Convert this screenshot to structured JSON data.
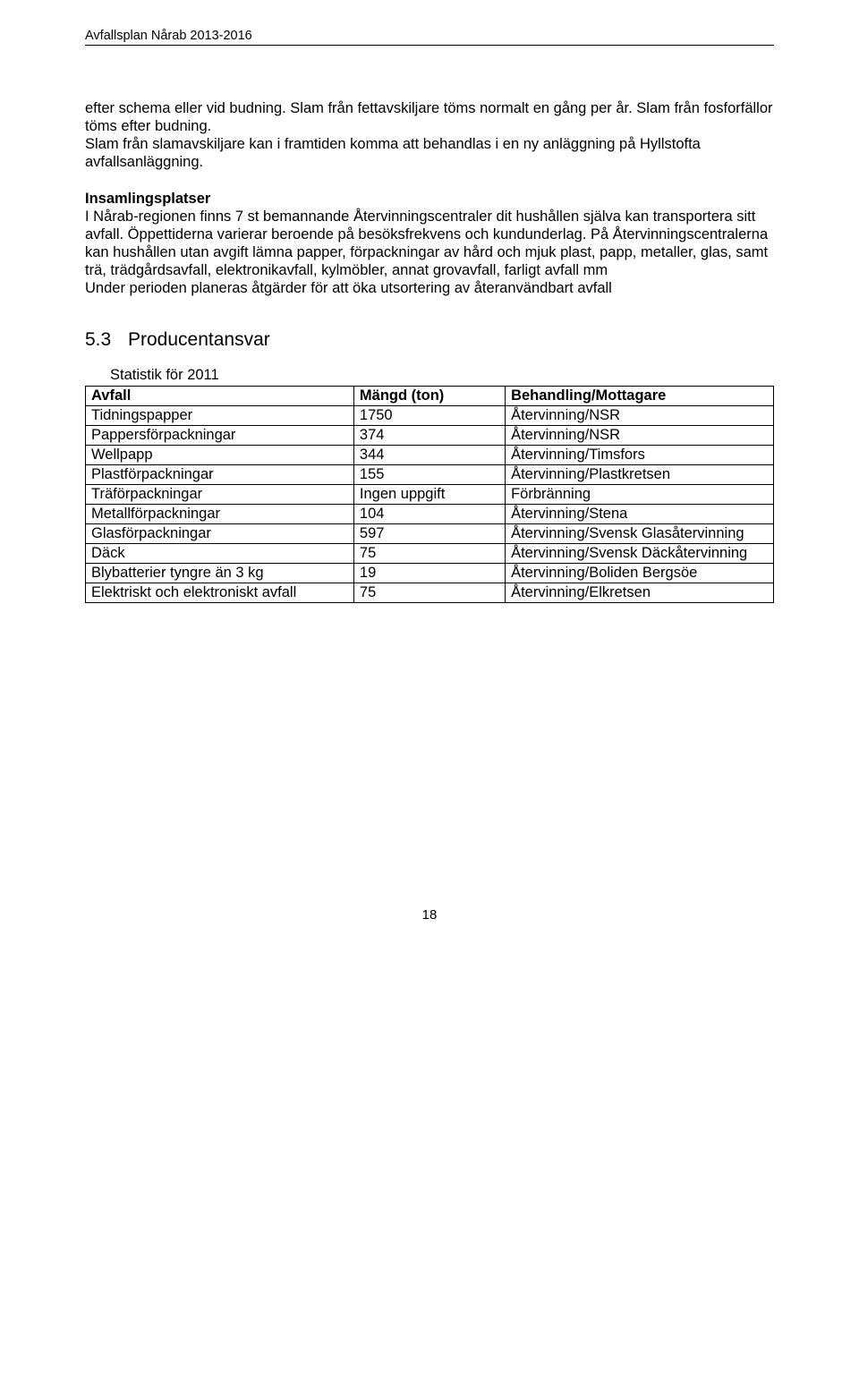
{
  "header": {
    "title": "Avfallsplan Nårab 2013-2016"
  },
  "para1": "efter schema eller vid budning. Slam från fettavskiljare töms normalt en gång per år. Slam från fosforfällor töms efter budning.\nSlam från slamavskiljare kan i framtiden komma att behandlas i en ny anläggning på Hyllstofta avfallsanläggning.",
  "para2_heading": "Insamlingsplatser",
  "para2_body": "I Nårab-regionen finns 7 st bemannande Återvinningscentraler dit hushållen själva kan transportera sitt avfall. Öppettiderna varierar beroende på besöksfrekvens och kundunderlag. På Återvinningscentralerna kan hushållen utan avgift lämna papper, förpackningar av hård och mjuk plast, papp, metaller, glas, samt trä, trädgårdsavfall, elektronikavfall, kylmöbler, annat grovavfall, farligt avfall mm\nUnder perioden planeras åtgärder för att öka utsortering av återanvändbart avfall",
  "section": {
    "num": "5.3",
    "title": "Producentansvar"
  },
  "stat_label": "Statistik för 2011",
  "table": {
    "headers": [
      "Avfall",
      "Mängd (ton)",
      "Behandling/Mottagare"
    ],
    "rows": [
      [
        "Tidningspapper",
        "1750",
        "Återvinning/NSR"
      ],
      [
        "Pappersförpackningar",
        "374",
        "Återvinning/NSR"
      ],
      [
        "Wellpapp",
        "344",
        "Återvinning/Timsfors"
      ],
      [
        "Plastförpackningar",
        "155",
        "Återvinning/Plastkretsen"
      ],
      [
        "Träförpackningar",
        "Ingen uppgift",
        "Förbränning"
      ],
      [
        "Metallförpackningar",
        "104",
        "Återvinning/Stena"
      ],
      [
        "Glasförpackningar",
        "597",
        "Återvinning/Svensk Glasåtervinning"
      ],
      [
        "Däck",
        "75",
        "Återvinning/Svensk Däckåtervinning"
      ],
      [
        "Blybatterier tyngre än 3 kg",
        "19",
        "Återvinning/Boliden Bergsöe"
      ],
      [
        "Elektriskt och elektroniskt avfall",
        "75",
        "Återvinning/Elkretsen"
      ]
    ],
    "col_widths": [
      "39%",
      "22%",
      "39%"
    ]
  },
  "page_number": "18"
}
